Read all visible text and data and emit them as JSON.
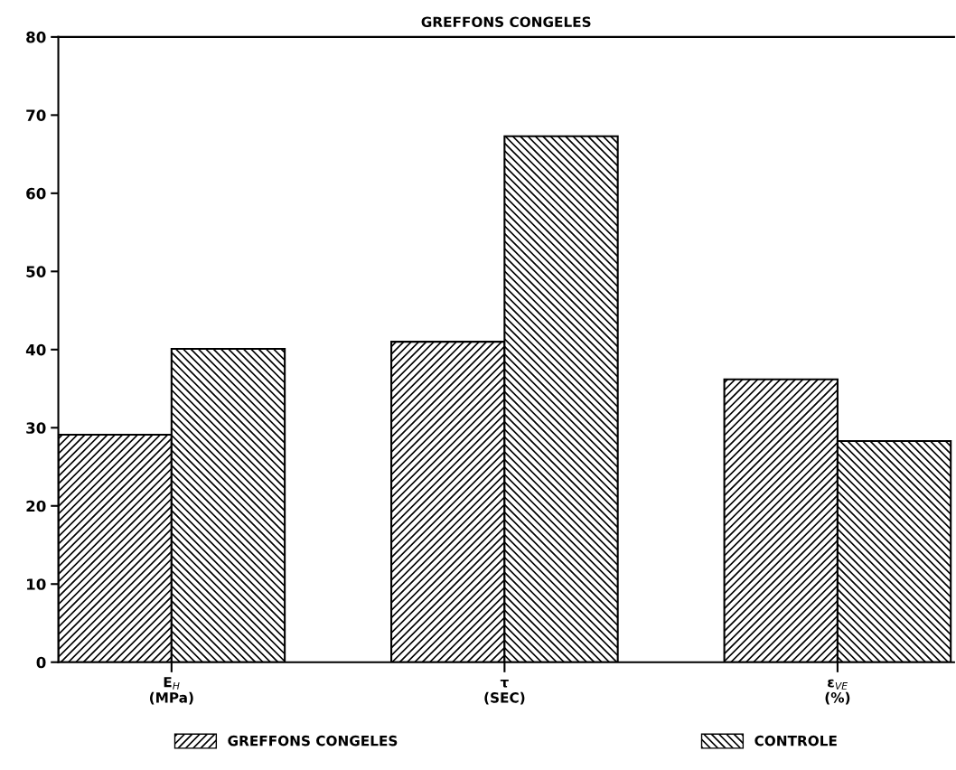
{
  "chart_data": {
    "type": "bar",
    "title": "GREFFONS CONGELES",
    "categories": [
      "E$_{H}$\n(MPa)",
      "τ\n(SEC)",
      "ε$_{VE}$\n(%)"
    ],
    "series": [
      {
        "name": "GREFFONS CONGELES",
        "color": "#000000",
        "values": [
          29.1,
          41.0,
          36.2
        ]
      },
      {
        "name": "CONTROLE",
        "color": "#000000",
        "values": [
          40.1,
          67.3,
          28.3
        ]
      }
    ],
    "ylim": [
      0,
      80
    ],
    "yticks": [
      0,
      10,
      20,
      30,
      40,
      50,
      60,
      70,
      80
    ],
    "grid": false,
    "legend": "bottom"
  }
}
